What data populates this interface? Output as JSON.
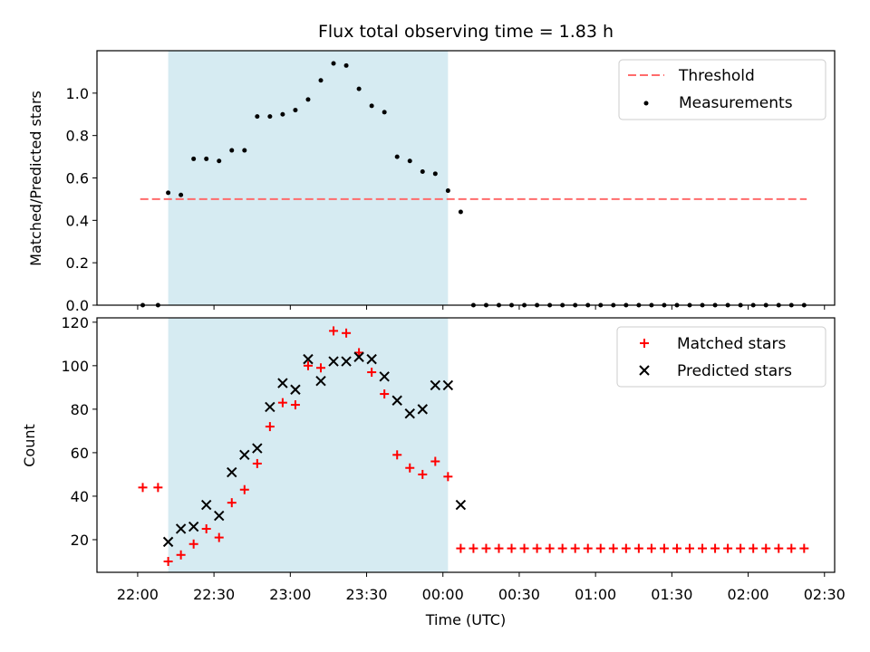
{
  "figure": {
    "title": "Flux total observing time = 1.83 h",
    "xlabel": "Time (UTC)",
    "shade_color": "#add8e6",
    "threshold_color": "#ff6b6b",
    "matched_color": "#ff0000",
    "predicted_color": "#000000",
    "measurement_color": "#000000"
  },
  "chart_data": [
    {
      "type": "scatter",
      "panel": "top",
      "ylabel": "Matched/Predicted stars",
      "xlim": [
        "21:44",
        "02:34"
      ],
      "ylim": [
        0,
        1.2
      ],
      "xticks": [
        "22:00",
        "22:30",
        "23:00",
        "23:30",
        "00:00",
        "00:30",
        "01:00",
        "01:30",
        "02:00",
        "02:30"
      ],
      "yticks": [
        "0.0",
        "0.2",
        "0.4",
        "0.6",
        "0.8",
        "1.0"
      ],
      "shaded_interval": [
        "22:12",
        "00:02"
      ],
      "threshold": {
        "value": 0.5,
        "x_start": "22:01",
        "x_end": "02:23"
      },
      "legend": {
        "position": "upper right",
        "threshold_label": "Threshold",
        "measurements_label": "Measurements"
      },
      "series": [
        {
          "name": "Measurements",
          "x": [
            "22:02",
            "22:08",
            "22:12",
            "22:17",
            "22:22",
            "22:27",
            "22:32",
            "22:37",
            "22:42",
            "22:47",
            "22:52",
            "22:57",
            "23:02",
            "23:07",
            "23:12",
            "23:17",
            "23:22",
            "23:27",
            "23:32",
            "23:37",
            "23:42",
            "23:47",
            "23:52",
            "23:57",
            "00:02",
            "00:07",
            "00:12",
            "00:17",
            "00:22",
            "00:27",
            "00:32",
            "00:37",
            "00:42",
            "00:47",
            "00:52",
            "00:57",
            "01:02",
            "01:07",
            "01:12",
            "01:17",
            "01:22",
            "01:27",
            "01:32",
            "01:37",
            "01:42",
            "01:47",
            "01:52",
            "01:57",
            "02:02",
            "02:07",
            "02:12",
            "02:17",
            "02:22"
          ],
          "y": [
            0,
            0,
            0.53,
            0.52,
            0.69,
            0.69,
            0.68,
            0.73,
            0.73,
            0.89,
            0.89,
            0.9,
            0.92,
            0.97,
            1.06,
            1.14,
            1.13,
            1.02,
            0.94,
            0.91,
            0.7,
            0.68,
            0.63,
            0.62,
            0.54,
            0.44,
            0,
            0,
            0,
            0,
            0,
            0,
            0,
            0,
            0,
            0,
            0,
            0,
            0,
            0,
            0,
            0,
            0,
            0,
            0,
            0,
            0,
            0,
            0,
            0,
            0,
            0,
            0
          ]
        }
      ]
    },
    {
      "type": "scatter",
      "panel": "bottom",
      "ylabel": "Count",
      "xlim": [
        "21:44",
        "02:34"
      ],
      "ylim": [
        5,
        122
      ],
      "xticks": [
        "22:00",
        "22:30",
        "23:00",
        "23:30",
        "00:00",
        "00:30",
        "01:00",
        "01:30",
        "02:00",
        "02:30"
      ],
      "yticks": [
        "20",
        "40",
        "60",
        "80",
        "100",
        "120"
      ],
      "shaded_interval": [
        "22:12",
        "00:02"
      ],
      "legend": {
        "position": "upper right"
      },
      "series": [
        {
          "name": "Matched stars",
          "marker": "+",
          "x": [
            "22:02",
            "22:08",
            "22:12",
            "22:17",
            "22:22",
            "22:27",
            "22:32",
            "22:37",
            "22:42",
            "22:47",
            "22:52",
            "22:57",
            "23:02",
            "23:07",
            "23:12",
            "23:17",
            "23:22",
            "23:27",
            "23:32",
            "23:37",
            "23:42",
            "23:47",
            "23:52",
            "23:57",
            "00:02",
            "00:07",
            "00:12",
            "00:17",
            "00:22",
            "00:27",
            "00:32",
            "00:37",
            "00:42",
            "00:47",
            "00:52",
            "00:57",
            "01:02",
            "01:07",
            "01:12",
            "01:17",
            "01:22",
            "01:27",
            "01:32",
            "01:37",
            "01:42",
            "01:47",
            "01:52",
            "01:57",
            "02:02",
            "02:07",
            "02:12",
            "02:17",
            "02:22"
          ],
          "y": [
            44,
            44,
            10,
            13,
            18,
            25,
            21,
            37,
            43,
            55,
            72,
            83,
            82,
            100,
            99,
            116,
            115,
            106,
            97,
            87,
            59,
            53,
            50,
            56,
            49,
            16,
            16,
            16,
            16,
            16,
            16,
            16,
            16,
            16,
            16,
            16,
            16,
            16,
            16,
            16,
            16,
            16,
            16,
            16,
            16,
            16,
            16,
            16,
            16,
            16,
            16,
            16,
            16
          ]
        },
        {
          "name": "Predicted stars",
          "marker": "x",
          "x": [
            "22:12",
            "22:17",
            "22:22",
            "22:27",
            "22:32",
            "22:37",
            "22:42",
            "22:47",
            "22:52",
            "22:57",
            "23:02",
            "23:07",
            "23:12",
            "23:17",
            "23:22",
            "23:27",
            "23:32",
            "23:37",
            "23:42",
            "23:47",
            "23:52",
            "23:57",
            "00:02",
            "00:07"
          ],
          "y": [
            19,
            25,
            26,
            36,
            31,
            51,
            59,
            62,
            81,
            92,
            89,
            103,
            93,
            102,
            102,
            104,
            103,
            95,
            84,
            78,
            80,
            91,
            91,
            36
          ]
        }
      ]
    }
  ]
}
